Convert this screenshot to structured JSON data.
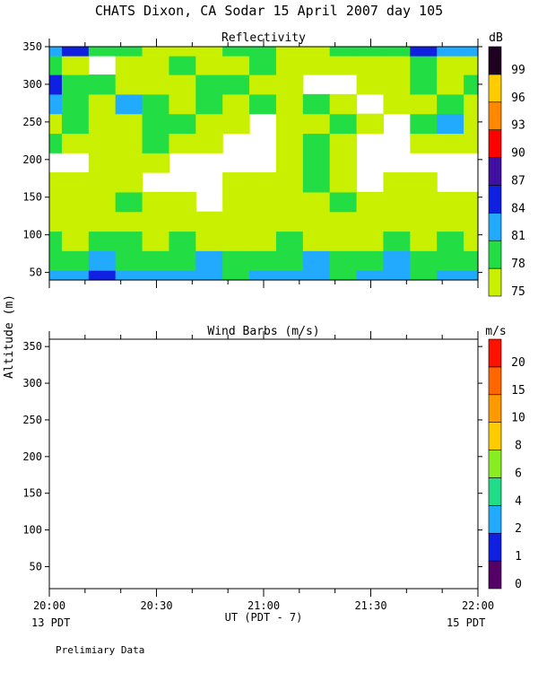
{
  "title": "CHATS Dixon, CA  Sodar  15 April 2007  day 105",
  "axes": {
    "ylabel": "Altitude (m)",
    "xlabel": "UT  (PDT - 7)",
    "x_ticks": [
      "20:00",
      "20:30",
      "21:00",
      "21:30",
      "22:00"
    ],
    "date_left": "13 PDT",
    "date_right": "15 PDT"
  },
  "footer": "Prelimiary Data",
  "chart_data": [
    {
      "type": "heatmap",
      "title": "Reflectivity",
      "unit": "dB",
      "xlim": [
        "20:00",
        "22:00"
      ],
      "ylim": [
        40,
        350
      ],
      "y_ticks": [
        50,
        100,
        150,
        200,
        250,
        300,
        350
      ],
      "x_ticks": [
        "20:00",
        "20:30",
        "21:00",
        "21:30",
        "22:00"
      ],
      "colorbar": {
        "levels": [
          75,
          78,
          81,
          84,
          87,
          90,
          93,
          96,
          99
        ],
        "colors": [
          "#c8f000",
          "#22dd44",
          "#22aaff",
          "#1020e0",
          "#4010a0",
          "#ff0000",
          "#ff8800",
          "#ffcc00",
          "#200020"
        ]
      },
      "x": [
        "20:00",
        "20:07",
        "20:15",
        "20:22",
        "20:30",
        "20:37",
        "20:45",
        "20:52",
        "21:00",
        "21:07",
        "21:15",
        "21:22",
        "21:30",
        "21:37",
        "21:45",
        "21:52",
        "22:00"
      ],
      "y": [
        40,
        66,
        92,
        118,
        144,
        170,
        196,
        222,
        248,
        274,
        300,
        326,
        350
      ],
      "z": [
        [
          81,
          81,
          84,
          81,
          81,
          81,
          81,
          78,
          81,
          81,
          81,
          78,
          81,
          81,
          78,
          81,
          81
        ],
        [
          78,
          78,
          81,
          78,
          78,
          78,
          81,
          78,
          78,
          78,
          81,
          78,
          78,
          81,
          78,
          78,
          78
        ],
        [
          78,
          76,
          78,
          78,
          76,
          78,
          76,
          76,
          75,
          78,
          76,
          75,
          76,
          78,
          76,
          78,
          76
        ],
        [
          76,
          76,
          75,
          76,
          75,
          76,
          75,
          75,
          76,
          76,
          75,
          76,
          76,
          75,
          76,
          75,
          76
        ],
        [
          76,
          75,
          76,
          78,
          76,
          75,
          73,
          75,
          76,
          75,
          76,
          78,
          75,
          75,
          76,
          76,
          75
        ],
        [
          75,
          76,
          75,
          76,
          73,
          73,
          73,
          75,
          76,
          76,
          78,
          76,
          73,
          76,
          75,
          73,
          73
        ],
        [
          73,
          73,
          76,
          75,
          76,
          73,
          73,
          73,
          73,
          75,
          78,
          75,
          73,
          73,
          73,
          73,
          73
        ],
        [
          78,
          76,
          75,
          76,
          78,
          76,
          75,
          73,
          73,
          76,
          78,
          75,
          73,
          73,
          75,
          76,
          75
        ],
        [
          76,
          78,
          76,
          75,
          78,
          78,
          76,
          75,
          73,
          75,
          76,
          78,
          76,
          73,
          78,
          81,
          76
        ],
        [
          81,
          78,
          76,
          81,
          78,
          76,
          78,
          76,
          78,
          76,
          78,
          76,
          73,
          75,
          76,
          78,
          76
        ],
        [
          84,
          78,
          78,
          76,
          75,
          76,
          78,
          78,
          76,
          75,
          73,
          73,
          75,
          76,
          78,
          76,
          78
        ],
        [
          78,
          76,
          73,
          75,
          76,
          78,
          76,
          75,
          78,
          76,
          75,
          76,
          76,
          75,
          78,
          76,
          76
        ],
        [
          81,
          84,
          78,
          78,
          76,
          76,
          75,
          78,
          78,
          76,
          75,
          78,
          78,
          78,
          84,
          81,
          81
        ]
      ]
    },
    {
      "type": "scatter",
      "title": "Wind Barbs (m/s)",
      "unit": "m/s",
      "xlim": [
        "20:00",
        "22:00"
      ],
      "ylim": [
        20,
        360
      ],
      "y_ticks": [
        50,
        100,
        150,
        200,
        250,
        300,
        350
      ],
      "x_ticks": [
        "20:00",
        "20:30",
        "21:00",
        "21:30",
        "22:00"
      ],
      "colorbar": {
        "levels": [
          0,
          1,
          2,
          4,
          6,
          8,
          10,
          15,
          20
        ],
        "colors": [
          "#550066",
          "#1020e0",
          "#22aaff",
          "#22dd88",
          "#88ee22",
          "#ffcc00",
          "#ff9900",
          "#ff6600",
          "#ff1100"
        ]
      },
      "series": []
    }
  ]
}
